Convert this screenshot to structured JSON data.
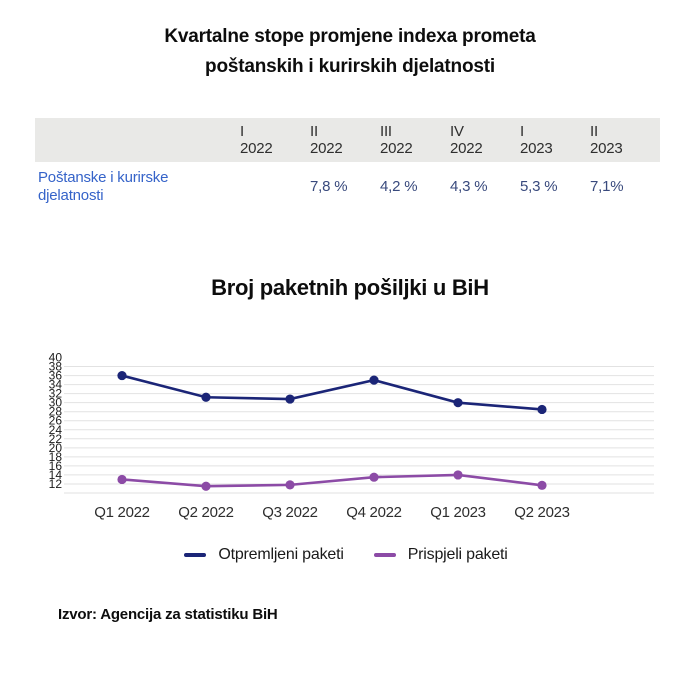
{
  "page": {
    "title_line1": "Kvartalne stope promjene indexa prometa",
    "title_line2": "poštanskih i kurirskih djelatnosti",
    "source": "Izvor: Agencija za statistiku BiH"
  },
  "table": {
    "header_bg": "#e9e9e7",
    "label_color": "#3563c9",
    "value_color": "#394a7d",
    "headers": [
      {
        "q": "I",
        "year": "2022"
      },
      {
        "q": "II",
        "year": "2022"
      },
      {
        "q": "III",
        "year": "2022"
      },
      {
        "q": "IV",
        "year": "2022"
      },
      {
        "q": "I",
        "year": "2023"
      },
      {
        "q": "II",
        "year": "2023"
      }
    ],
    "row": {
      "label_line1": "Poštanske i kurirske",
      "label_line2": "djelatnosti",
      "values": [
        "",
        "7,8 %",
        "4,2 %",
        "4,3 %",
        "5,3 %",
        "7,1%"
      ]
    }
  },
  "chart_data": {
    "type": "line",
    "title": "Broj paketnih pošiljki u BiH",
    "xlabel": "",
    "ylabel": "",
    "x": [
      "Q1 2022",
      "Q2 2022",
      "Q3 2022",
      "Q4 2022",
      "Q1 2023",
      "Q2 2023"
    ],
    "series": [
      {
        "name": "Otpremljeni paketi",
        "color": "#1b2577",
        "values": [
          36,
          31.2,
          30.8,
          35,
          30,
          28.5
        ]
      },
      {
        "name": "Prispjeli paketi",
        "color": "#8c4ba6",
        "values": [
          13,
          11.5,
          11.8,
          13.5,
          14,
          11.7
        ]
      }
    ],
    "ylim": [
      10,
      41
    ],
    "yticks": [
      40,
      38,
      36,
      34,
      32,
      30,
      28,
      26,
      24,
      22,
      20,
      18,
      16,
      14,
      12
    ],
    "gridline_values": [
      38,
      36,
      34,
      32,
      30,
      28,
      26,
      24,
      22,
      20,
      18,
      16,
      14,
      12,
      10
    ],
    "grid": true,
    "gridline_color": "#e2e2e2",
    "legend_position": "bottom"
  }
}
